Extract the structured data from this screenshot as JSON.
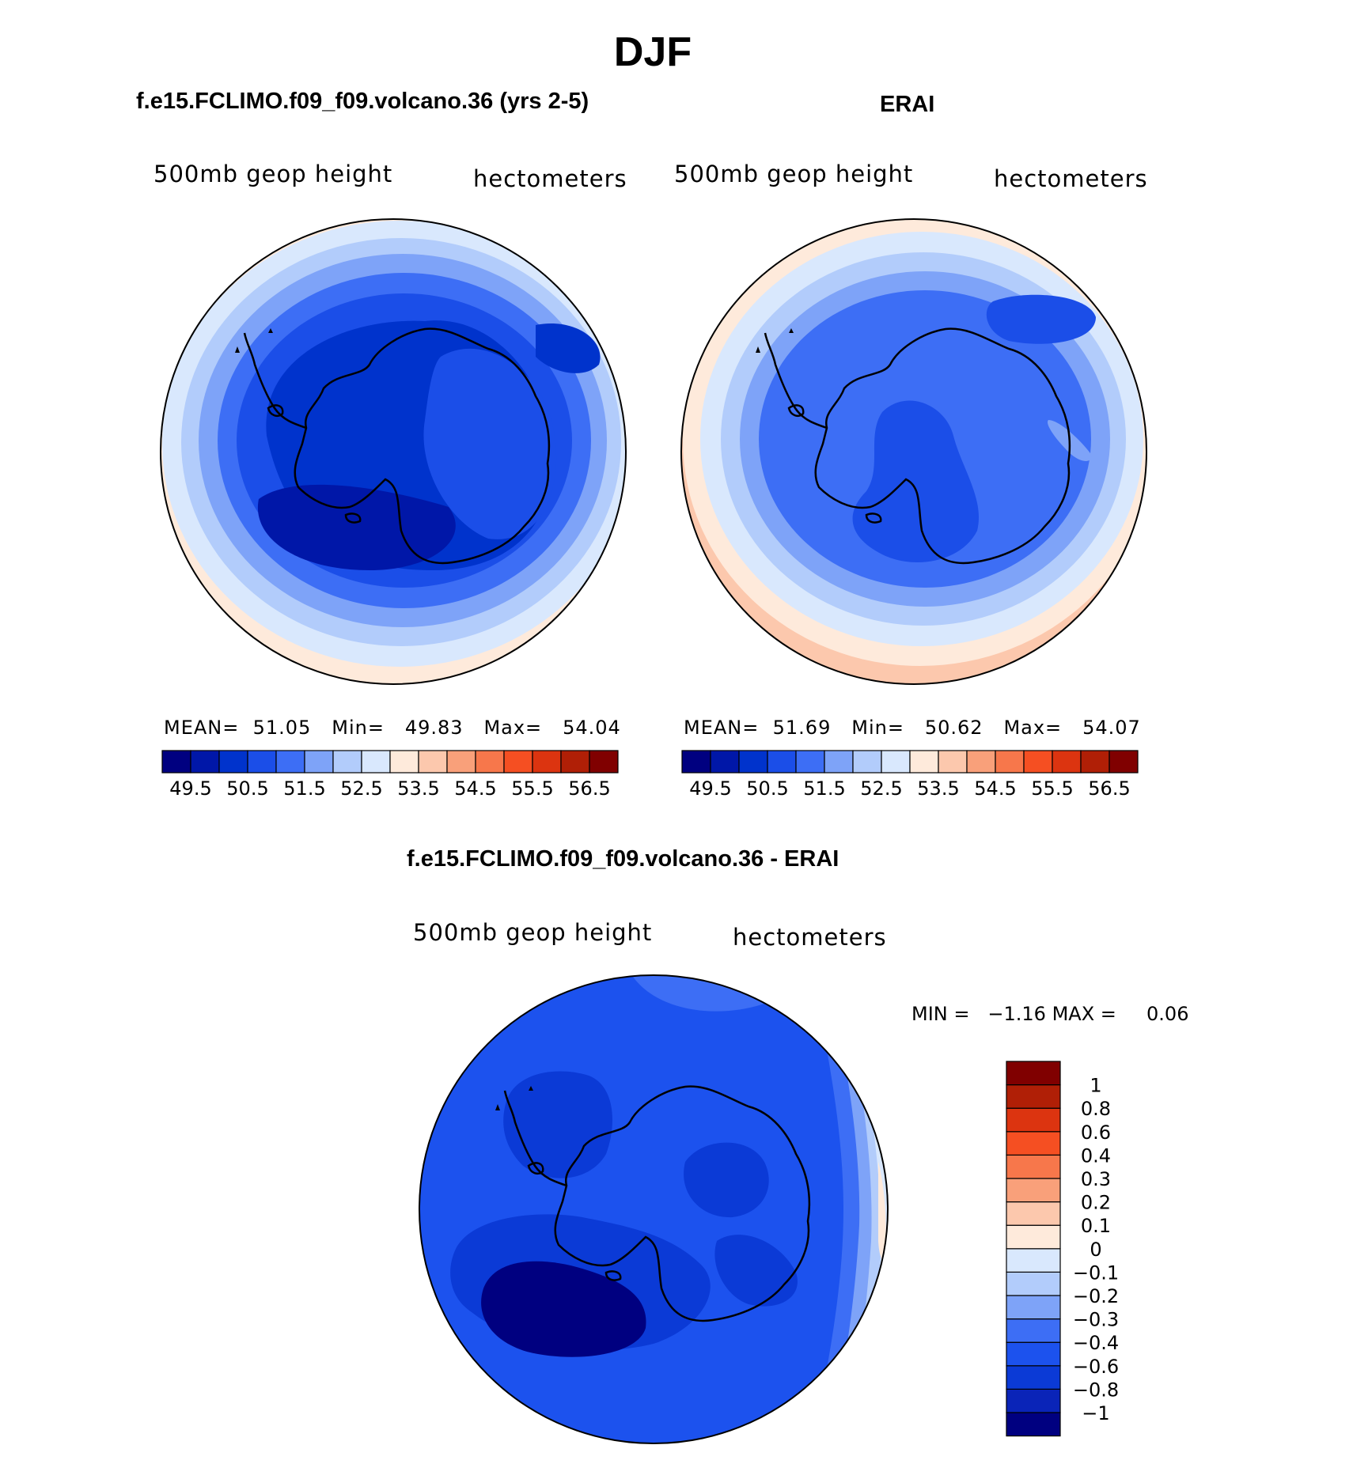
{
  "title": "DJF",
  "panels": {
    "model": {
      "title": "f.e15.FCLIMO.f09_f09.volcano.36 (yrs 2-5)",
      "left_label": "500mb geop height",
      "right_label": "hectometers",
      "stats": {
        "mean_label": "MEAN=",
        "mean": "51.05",
        "min_label": "Min=",
        "min": "49.83",
        "max_label": "Max=",
        "max": "54.04"
      }
    },
    "obs": {
      "title": "ERAI",
      "left_label": "500mb geop height",
      "right_label": "hectometers",
      "stats": {
        "mean_label": "MEAN=",
        "mean": "51.69",
        "min_label": "Min=",
        "min": "50.62",
        "max_label": "Max=",
        "max": "54.07"
      }
    },
    "diff": {
      "title": "f.e15.FCLIMO.f09_f09.volcano.36 - ERAI",
      "left_label": "500mb geop height",
      "right_label": "hectometers",
      "stats": {
        "min_label": "MIN =",
        "min": "−1.16",
        "max_label": "MAX =",
        "max": "0.06"
      }
    }
  },
  "colorbar_abs": {
    "colors": [
      "#000080",
      "#0017a8",
      "#0033cc",
      "#1b4ee8",
      "#3d6ef5",
      "#7ea3f8",
      "#b2ccfb",
      "#d9e8fd",
      "#feeadb",
      "#fcc8ad",
      "#f9a07a",
      "#f7774b",
      "#f54f22",
      "#dc3410",
      "#b01f06",
      "#800000"
    ],
    "labels": [
      "49.5",
      "50.5",
      "51.5",
      "52.5",
      "53.5",
      "54.5",
      "55.5",
      "56.5"
    ]
  },
  "colorbar_diff": {
    "colors": [
      "#000080",
      "#0a24b8",
      "#0b3ad6",
      "#1c52ee",
      "#3d6ef5",
      "#7ea3f8",
      "#b2ccfb",
      "#d9e8fd",
      "#feeadb",
      "#fcc8ad",
      "#f9a07a",
      "#f7774b",
      "#f54f22",
      "#dc3410",
      "#b01f06",
      "#800000"
    ],
    "labels": [
      "−1",
      "−0.8",
      "−0.6",
      "−0.4",
      "−0.3",
      "−0.2",
      "−0.1",
      "0",
      "0.1",
      "0.2",
      "0.3",
      "0.4",
      "0.6",
      "0.8",
      "1"
    ]
  }
}
